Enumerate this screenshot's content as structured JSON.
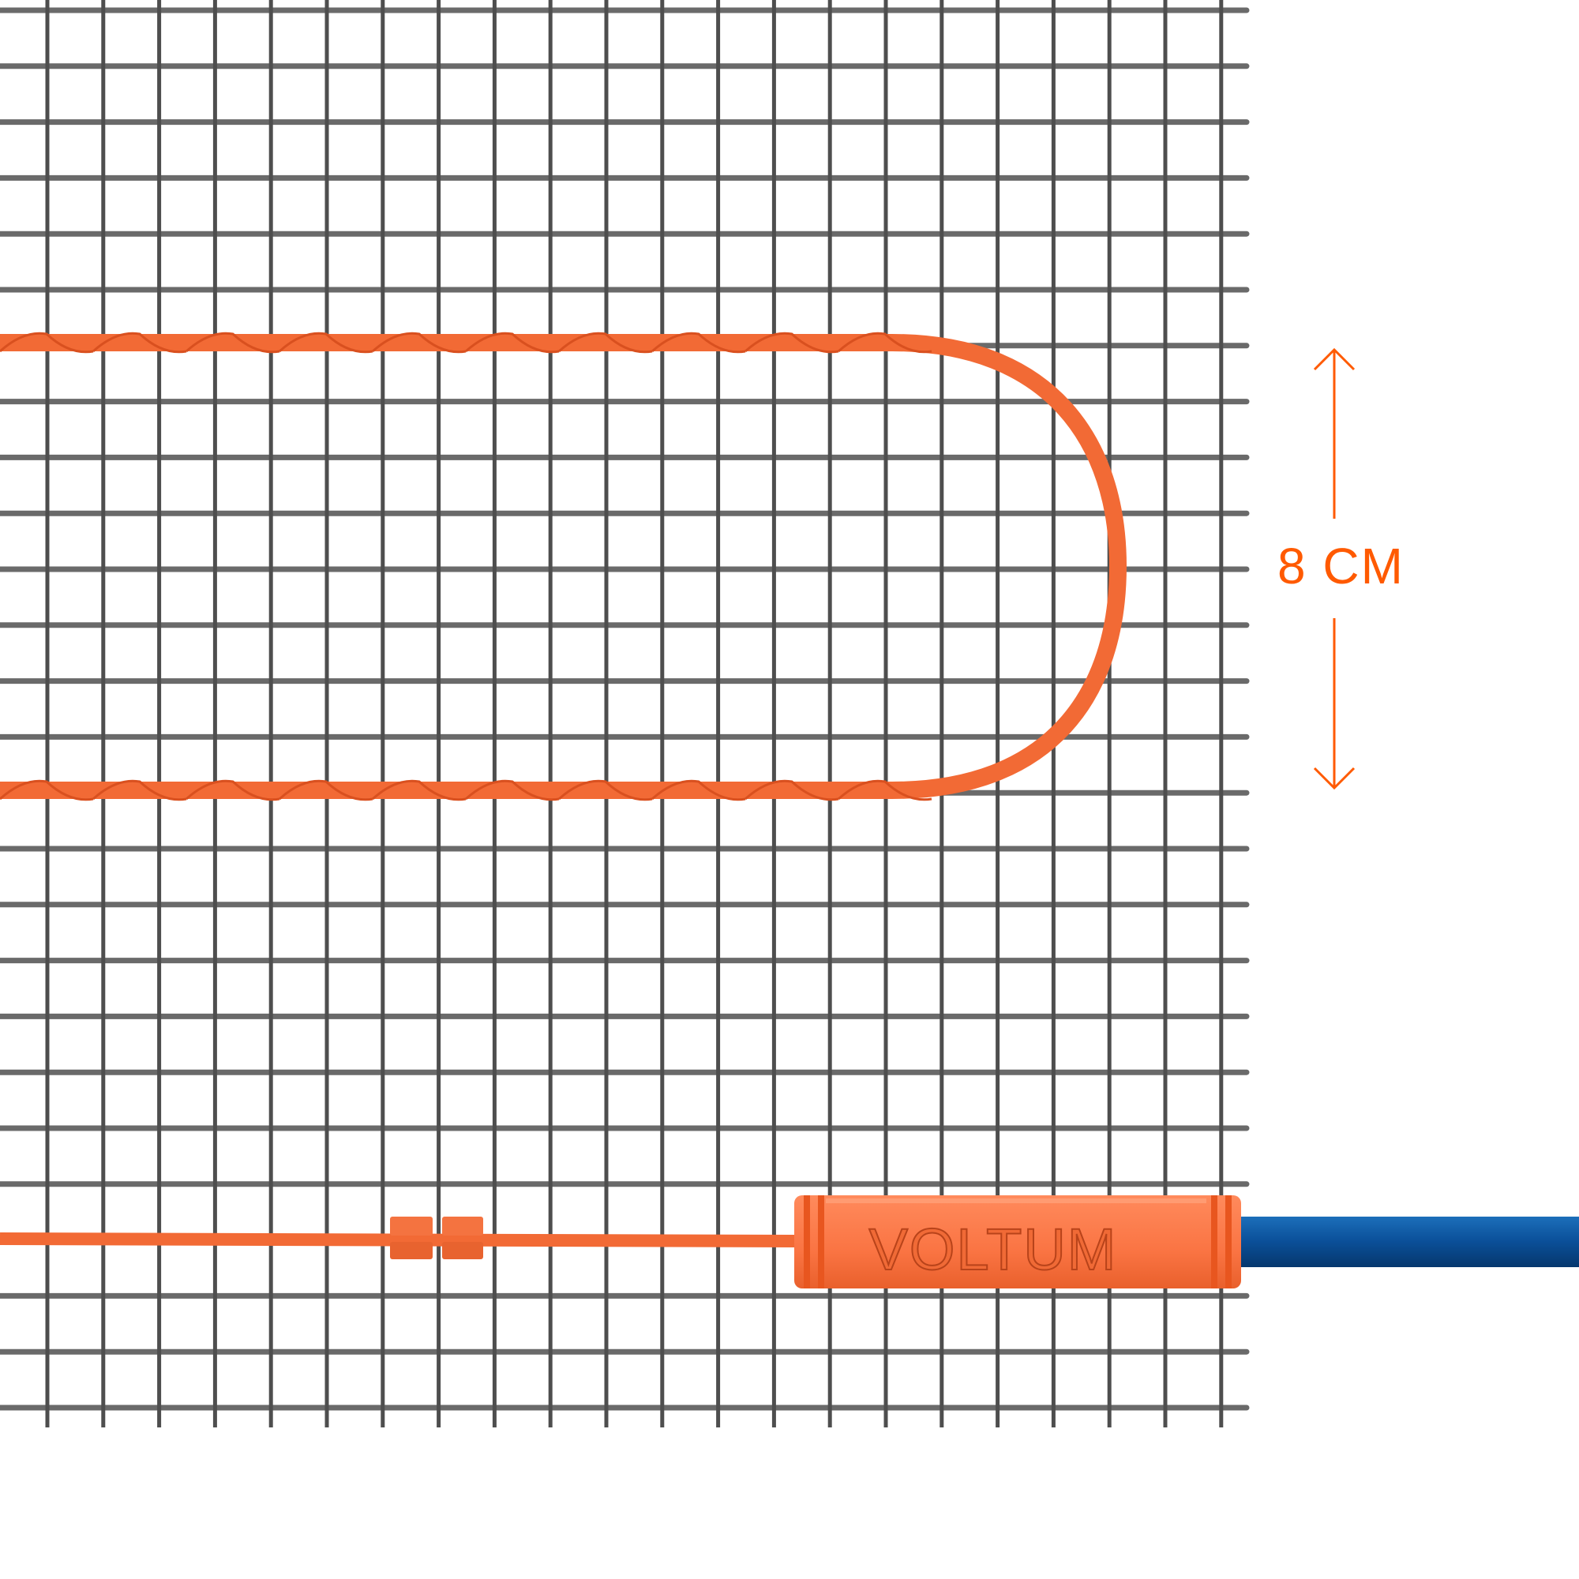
{
  "dimension": {
    "label": "8 CM"
  },
  "connector": {
    "logo_text": "VOLTUM"
  },
  "colors": {
    "accent": "#ff5a00",
    "cable": "#f26a35",
    "connector": "#fb7a48",
    "mesh": "#5a5a5a",
    "power_cable": "#0a55a0"
  }
}
